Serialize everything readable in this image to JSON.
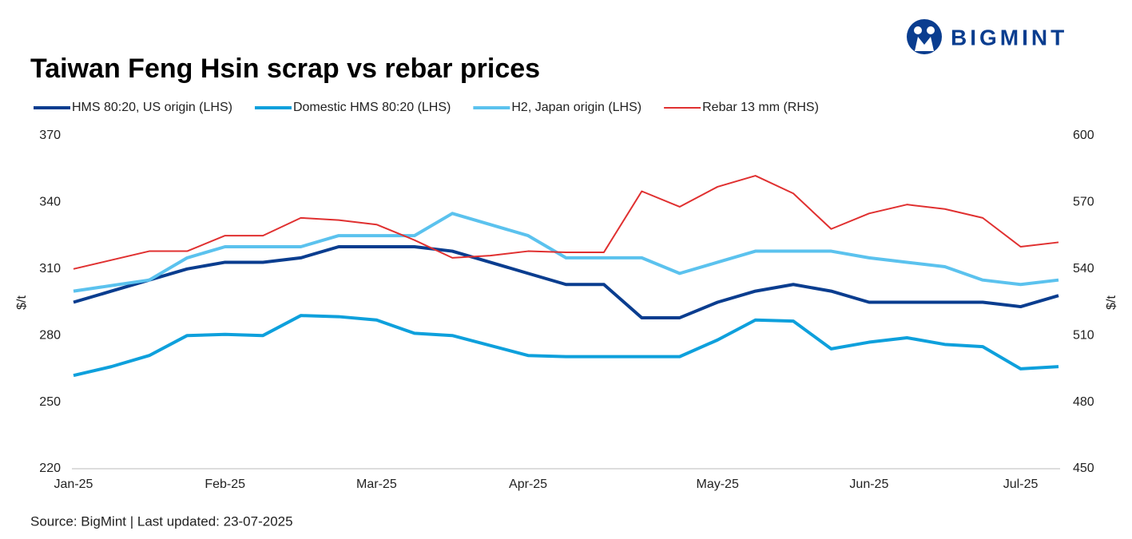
{
  "brand": "BIGMINT",
  "chart_data": {
    "type": "line",
    "title": "Taiwan Feng Hsin scrap vs rebar prices",
    "source": "Source: BigMint |  Last updated: 23-07-2025",
    "ylabel": "$/t",
    "y2label": "$/t",
    "categories": [
      "Jan-25",
      null,
      null,
      null,
      "Feb-25",
      null,
      null,
      null,
      "Mar-25",
      null,
      null,
      null,
      "Apr-25",
      null,
      null,
      null,
      null,
      "May-25",
      null,
      null,
      null,
      "Jun-25",
      null,
      null,
      null,
      "Jul-25",
      null
    ],
    "ylim": [
      220,
      370
    ],
    "yticks": [
      220,
      250,
      280,
      310,
      340,
      370
    ],
    "y2lim": [
      450,
      600
    ],
    "y2ticks": [
      450,
      480,
      510,
      540,
      570,
      600
    ],
    "grid": false,
    "legend": "top",
    "series": [
      {
        "name": "HMS 80:20, US origin (LHS)",
        "color": "#0a3d8f",
        "width": 4,
        "values": [
          295,
          300,
          305,
          310,
          313,
          313,
          315,
          320,
          320,
          320,
          318,
          313,
          308,
          303,
          303,
          288,
          288,
          295,
          300,
          303,
          300,
          295,
          295,
          295,
          295,
          293,
          298
        ]
      },
      {
        "name": "Domestic HMS 80:20 (LHS)",
        "color": "#0ea0dc",
        "width": 4,
        "values": [
          262,
          266,
          271,
          280,
          280.5,
          280,
          289,
          288.5,
          287,
          281,
          280,
          275.5,
          271,
          270.5,
          270.5,
          270.5,
          270.5,
          278,
          287,
          286.5,
          274,
          277,
          279,
          276,
          275,
          265,
          266
        ]
      },
      {
        "name": "H2, Japan origin (LHS)",
        "color": "#5bc2ee",
        "width": 4,
        "values": [
          300,
          302.5,
          305,
          315,
          320,
          320,
          320,
          325,
          325,
          325,
          335,
          330,
          325,
          315,
          315,
          315,
          308,
          313,
          318,
          318,
          318,
          315,
          313,
          311,
          305,
          303,
          305
        ]
      },
      {
        "name": "Rebar 13 mm (RHS)",
        "color": "#e03030",
        "width": 2,
        "axis": "y2",
        "values": [
          540,
          544,
          548,
          548,
          555,
          555,
          563,
          562,
          560,
          553,
          545,
          546,
          548,
          547.5,
          547.5,
          575,
          568,
          577,
          582,
          574,
          558,
          565,
          569,
          567,
          563,
          550,
          552
        ]
      }
    ]
  }
}
